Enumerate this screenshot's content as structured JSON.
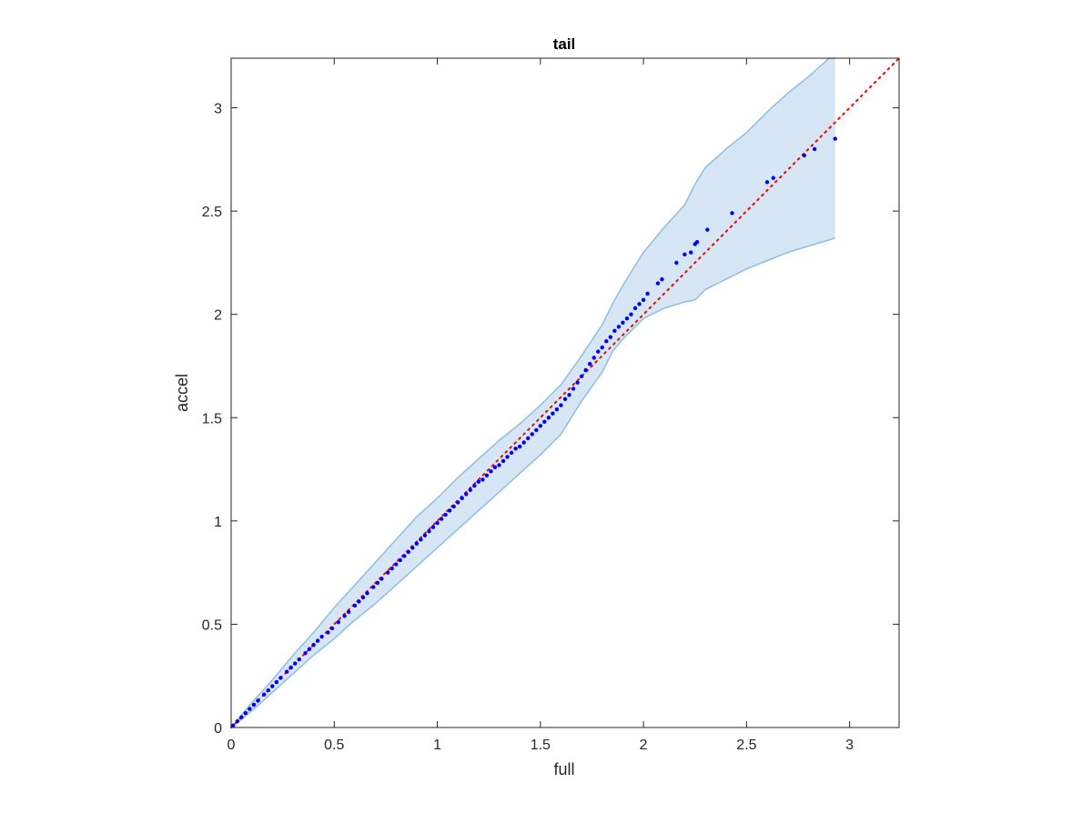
{
  "chart_data": {
    "type": "scatter",
    "title": "tail",
    "xlabel": "full",
    "ylabel": "accel",
    "xlim": [
      0,
      3.24
    ],
    "ylim": [
      0,
      3.24
    ],
    "xticks": [
      0,
      0.5,
      1,
      1.5,
      2,
      2.5,
      3
    ],
    "yticks": [
      0,
      0.5,
      1,
      1.5,
      2,
      2.5,
      3
    ],
    "xtick_labels": [
      "0",
      "0.5",
      "1",
      "1.5",
      "2",
      "2.5",
      "3"
    ],
    "ytick_labels": [
      "0",
      "0.5",
      "1",
      "1.5",
      "2",
      "2.5",
      "3"
    ],
    "grid": false,
    "colors": {
      "points": "#0000ff",
      "reference": "#ff0000",
      "band_fill": "#d6e6f4",
      "band_edge": "#8bbfe0"
    },
    "reference_line": {
      "x": [
        0,
        3.24
      ],
      "y": [
        0,
        3.24
      ],
      "style": "dotted"
    },
    "band": {
      "x": [
        0,
        0.1,
        0.2,
        0.3,
        0.4,
        0.5,
        0.6,
        0.7,
        0.8,
        0.9,
        1.0,
        1.1,
        1.2,
        1.3,
        1.4,
        1.5,
        1.6,
        1.7,
        1.8,
        1.85,
        1.9,
        2.0,
        2.1,
        2.2,
        2.25,
        2.3,
        2.4,
        2.5,
        2.6,
        2.7,
        2.8,
        2.9,
        2.93
      ],
      "upper": [
        0,
        0.12,
        0.23,
        0.35,
        0.46,
        0.58,
        0.69,
        0.8,
        0.91,
        1.02,
        1.11,
        1.21,
        1.3,
        1.39,
        1.47,
        1.56,
        1.66,
        1.8,
        1.95,
        2.05,
        2.14,
        2.3,
        2.42,
        2.53,
        2.63,
        2.71,
        2.8,
        2.88,
        2.98,
        3.07,
        3.15,
        3.24,
        3.24
      ],
      "lower": [
        0,
        0.08,
        0.17,
        0.26,
        0.35,
        0.43,
        0.52,
        0.6,
        0.69,
        0.78,
        0.87,
        0.96,
        1.05,
        1.14,
        1.23,
        1.32,
        1.42,
        1.58,
        1.72,
        1.82,
        1.88,
        1.98,
        2.03,
        2.06,
        2.07,
        2.12,
        2.17,
        2.22,
        2.26,
        2.3,
        2.33,
        2.36,
        2.37
      ]
    },
    "points_x": [
      0.01,
      0.03,
      0.05,
      0.07,
      0.09,
      0.11,
      0.13,
      0.16,
      0.18,
      0.2,
      0.22,
      0.24,
      0.27,
      0.29,
      0.31,
      0.33,
      0.36,
      0.38,
      0.4,
      0.42,
      0.44,
      0.47,
      0.49,
      0.52,
      0.55,
      0.57,
      0.6,
      0.62,
      0.64,
      0.66,
      0.69,
      0.71,
      0.73,
      0.76,
      0.78,
      0.8,
      0.82,
      0.84,
      0.86,
      0.88,
      0.9,
      0.92,
      0.94,
      0.96,
      0.98,
      1.0,
      1.02,
      1.04,
      1.06,
      1.08,
      1.1,
      1.12,
      1.14,
      1.16,
      1.18,
      1.2,
      1.22,
      1.24,
      1.26,
      1.28,
      1.3,
      1.32,
      1.34,
      1.36,
      1.38,
      1.4,
      1.42,
      1.44,
      1.46,
      1.48,
      1.5,
      1.52,
      1.54,
      1.56,
      1.58,
      1.6,
      1.62,
      1.64,
      1.66,
      1.68,
      1.7,
      1.72,
      1.74,
      1.76,
      1.78,
      1.8,
      1.82,
      1.84,
      1.86,
      1.88,
      1.9,
      1.92,
      1.94,
      1.96,
      1.98,
      2.0,
      2.02,
      2.07,
      2.09,
      2.16,
      2.2,
      2.23,
      2.25,
      2.26,
      2.31,
      2.43,
      2.6,
      2.63,
      2.78,
      2.83,
      2.93
    ],
    "points_y": [
      0.01,
      0.03,
      0.05,
      0.07,
      0.09,
      0.11,
      0.13,
      0.16,
      0.18,
      0.2,
      0.22,
      0.24,
      0.27,
      0.29,
      0.31,
      0.33,
      0.36,
      0.38,
      0.4,
      0.42,
      0.44,
      0.46,
      0.48,
      0.51,
      0.54,
      0.56,
      0.59,
      0.61,
      0.63,
      0.65,
      0.68,
      0.7,
      0.72,
      0.75,
      0.77,
      0.79,
      0.81,
      0.83,
      0.85,
      0.87,
      0.89,
      0.91,
      0.93,
      0.95,
      0.97,
      0.99,
      1.01,
      1.03,
      1.05,
      1.07,
      1.09,
      1.11,
      1.13,
      1.15,
      1.17,
      1.19,
      1.2,
      1.22,
      1.24,
      1.26,
      1.27,
      1.29,
      1.31,
      1.33,
      1.35,
      1.36,
      1.38,
      1.4,
      1.42,
      1.44,
      1.46,
      1.48,
      1.5,
      1.52,
      1.54,
      1.56,
      1.59,
      1.61,
      1.64,
      1.67,
      1.7,
      1.73,
      1.76,
      1.79,
      1.82,
      1.84,
      1.87,
      1.89,
      1.92,
      1.94,
      1.96,
      1.98,
      2.0,
      2.03,
      2.05,
      2.07,
      2.1,
      2.15,
      2.17,
      2.25,
      2.29,
      2.3,
      2.34,
      2.35,
      2.41,
      2.49,
      2.64,
      2.66,
      2.77,
      2.8,
      2.85
    ]
  }
}
